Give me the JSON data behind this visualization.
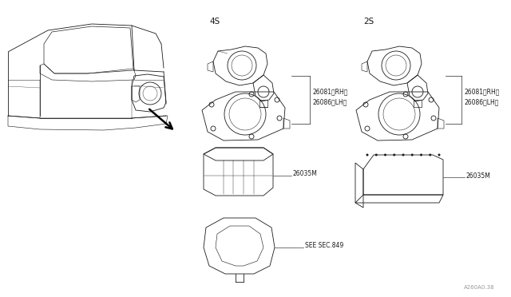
{
  "bg_color": "#ffffff",
  "lc": "#1a1a1a",
  "tc": "#1a1a1a",
  "title_4s": "4S",
  "title_2s": "2S",
  "lbl_26081_rh": "26081（RH）",
  "lbl_26086_lh": "26086（LH）",
  "lbl_26035m": "26035M",
  "lbl_see_sec": "SEE SEC.849",
  "footer": "A260A0.38",
  "fig_width": 6.4,
  "fig_height": 3.72,
  "dpi": 100
}
